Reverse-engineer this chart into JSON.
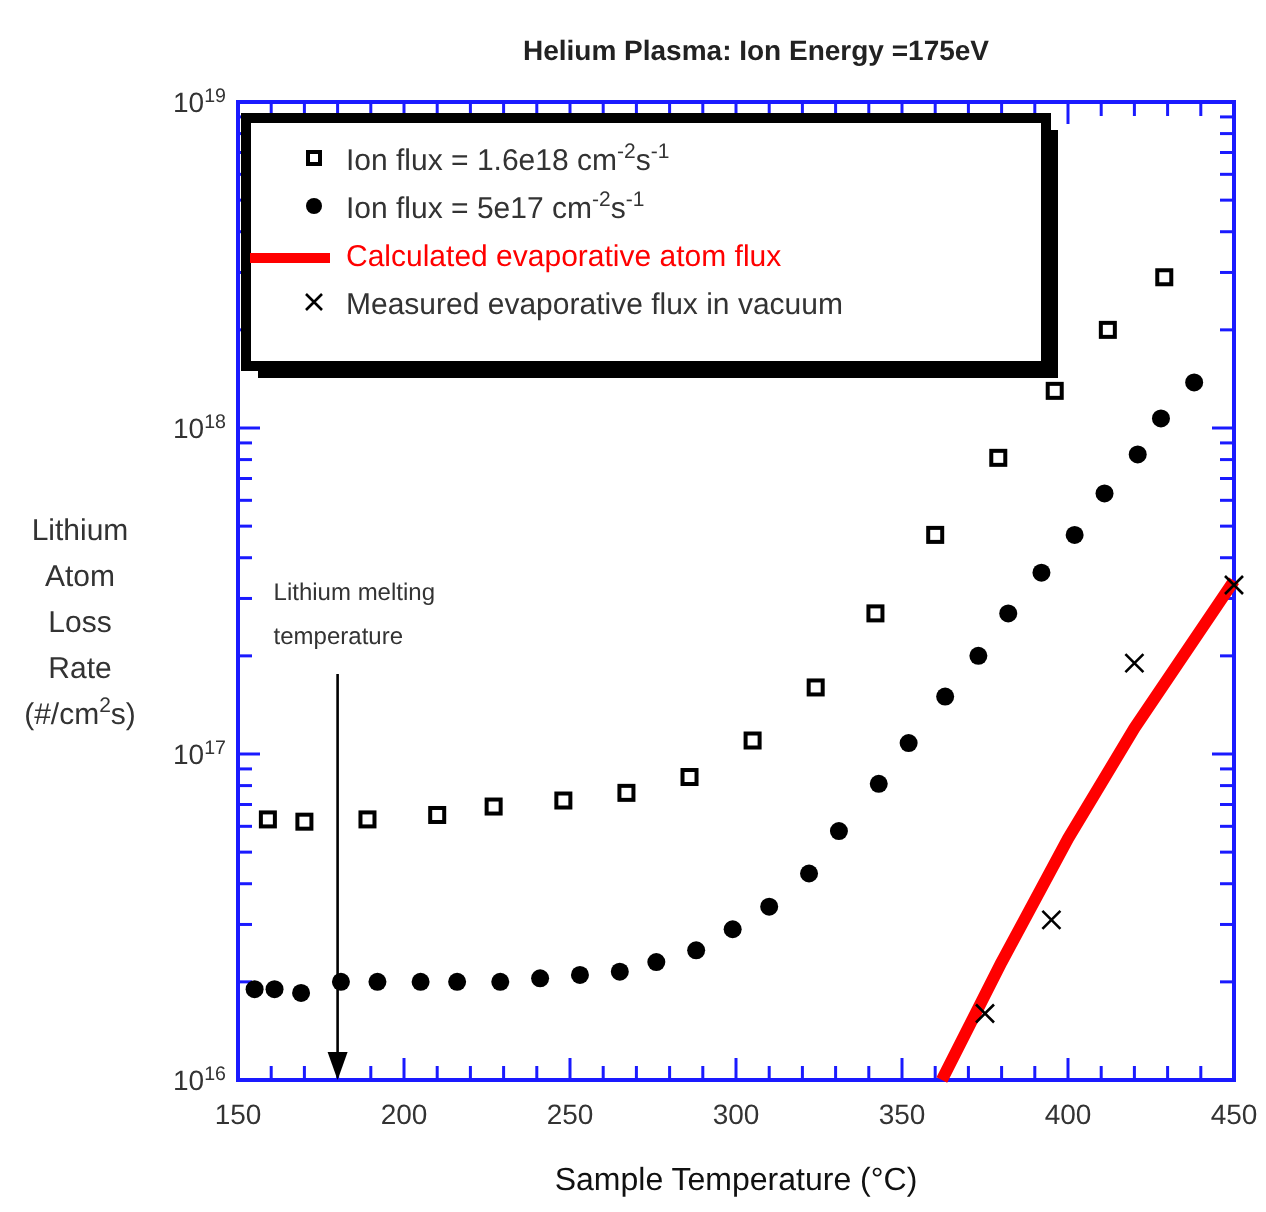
{
  "chart_data": {
    "type": "scatter",
    "title": "Helium Plasma: Ion Energy =175eV",
    "xlabel": "Sample Temperature (°C)",
    "ylabel": "Lithium\nAtom\nLoss\nRate\n(#/cm$^{2}$s)",
    "log": "y",
    "grid": false,
    "legend": "top left",
    "xlim": [
      150,
      450
    ],
    "xticks": [
      150,
      {
        "value": 160,
        "label": null
      },
      {
        "value": 170,
        "label": null
      },
      {
        "value": 180,
        "label": null
      },
      {
        "value": 190,
        "label": null
      },
      200,
      {
        "value": 210,
        "label": null
      },
      {
        "value": 220,
        "label": null
      },
      {
        "value": 230,
        "label": null
      },
      {
        "value": 240,
        "label": null
      },
      250,
      {
        "value": 260,
        "label": null
      },
      {
        "value": 270,
        "label": null
      },
      {
        "value": 280,
        "label": null
      },
      {
        "value": 290,
        "label": null
      },
      300,
      {
        "value": 310,
        "label": null
      },
      {
        "value": 320,
        "label": null
      },
      {
        "value": 330,
        "label": null
      },
      {
        "value": 340,
        "label": null
      },
      350,
      {
        "value": 360,
        "label": null
      },
      {
        "value": 370,
        "label": null
      },
      {
        "value": 380,
        "label": null
      },
      {
        "value": 390,
        "label": null
      },
      400,
      {
        "value": 410,
        "label": null
      },
      {
        "value": 420,
        "label": null
      },
      {
        "value": 430,
        "label": null
      },
      {
        "value": 440,
        "label": null
      },
      450
    ],
    "ylim": [
      1e+16,
      1e+19
    ],
    "yticks": [
      {
        "value": 1e+16,
        "label": "10$^{16}$"
      },
      {
        "value": 2e+16,
        "label": null
      },
      {
        "value": 3e+16,
        "label": null
      },
      {
        "value": 4e+16,
        "label": null
      },
      {
        "value": 5e+16,
        "label": null
      },
      {
        "value": 6e+16,
        "label": null
      },
      {
        "value": 7e+16,
        "label": null
      },
      {
        "value": 8e+16,
        "label": null
      },
      {
        "value": 9e+16,
        "label": null
      },
      {
        "value": 1e+17,
        "label": "10$^{17}$"
      },
      {
        "value": 2e+17,
        "label": null
      },
      {
        "value": 3e+17,
        "label": null
      },
      {
        "value": 4e+17,
        "label": null
      },
      {
        "value": 5e+17,
        "label": null
      },
      {
        "value": 6e+17,
        "label": null
      },
      {
        "value": 7e+17,
        "label": null
      },
      {
        "value": 8e+17,
        "label": null
      },
      {
        "value": 9e+17,
        "label": null
      },
      {
        "value": 1e+18,
        "label": "10$^{18}$"
      },
      {
        "value": 2e+18,
        "label": null
      },
      {
        "value": 3e+18,
        "label": null
      },
      {
        "value": 4e+18,
        "label": null
      },
      {
        "value": 5e+18,
        "label": null
      },
      {
        "value": 6e+18,
        "label": null
      },
      {
        "value": 7e+18,
        "label": null
      },
      {
        "value": 8e+18,
        "label": null
      },
      {
        "value": 9e+18,
        "label": null
      },
      {
        "value": 1e+19,
        "label": "10$^{19}$"
      }
    ],
    "ref_lines": [
      {
        "axis": "x",
        "value": 180,
        "label": "Lithium melting temperature",
        "color": "#000000"
      }
    ],
    "series": [
      {
        "name": "Ion flux = 1.6e18 cm$^{-2}$s$^{-1}$",
        "marker": "square",
        "color": "#000000",
        "x": [
          159,
          170,
          189,
          210,
          227,
          248,
          267,
          286,
          305,
          324,
          342,
          360,
          379,
          396,
          412,
          429
        ],
        "values": [
          6.3e+16,
          6.2e+16,
          6.3e+16,
          6.5e+16,
          6.9e+16,
          7.2e+16,
          7.6e+16,
          8.5e+16,
          1.1e+17,
          1.6e+17,
          2.7e+17,
          4.7e+17,
          8.1e+17,
          1.3e+18,
          2e+18,
          2.9e+18
        ]
      },
      {
        "name": "Ion flux = 5e17 cm$^{-2}$s$^{-1}$",
        "marker": "circle",
        "color": "#000000",
        "x": [
          155,
          161,
          169,
          181,
          192,
          205,
          216,
          229,
          241,
          253,
          265,
          276,
          288,
          299,
          310,
          322,
          331,
          343,
          352,
          363,
          373,
          382,
          392,
          402,
          411,
          421,
          428,
          438
        ],
        "values": [
          1.9e+16,
          1.9e+16,
          1.85e+16,
          2e+16,
          2e+16,
          2e+16,
          2e+16,
          2e+16,
          2.05e+16,
          2.1e+16,
          2.15e+16,
          2.3e+16,
          2.5e+16,
          2.9e+16,
          3.4e+16,
          4.3e+16,
          5.8e+16,
          8.1e+16,
          1.08e+17,
          1.5e+17,
          2e+17,
          2.7e+17,
          3.6e+17,
          4.7e+17,
          6.3e+17,
          8.3e+17,
          1.07e+18,
          1.38e+18
        ]
      },
      {
        "name": "Calculated evaporative atom flux",
        "type": "line",
        "marker": "none",
        "line_style": "solid",
        "color": "#ff0000",
        "x": [
          362,
          380,
          400,
          420,
          450
        ],
        "values": [
          1e+16,
          2.3e+16,
          5.5e+16,
          1.2e+17,
          3.4e+17
        ]
      },
      {
        "name": "Measured evaporative flux in vacuum",
        "marker": "cross",
        "color": "#000000",
        "x": [
          375,
          395,
          420,
          450
        ],
        "values": [
          1.6e+16,
          3.1e+16,
          1.9e+17,
          3.3e+17
        ]
      }
    ]
  }
}
